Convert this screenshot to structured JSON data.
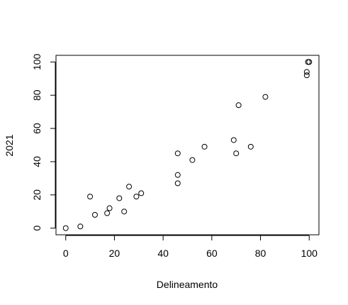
{
  "chart_data": {
    "type": "scatter",
    "title": "",
    "xlabel": "Delineamento",
    "ylabel": "2021",
    "xlim": [
      -4,
      104
    ],
    "ylim": [
      -4,
      104
    ],
    "x_ticks": [
      0,
      20,
      40,
      60,
      80,
      100
    ],
    "y_ticks": [
      0,
      20,
      40,
      60,
      80,
      100
    ],
    "x_tick_labels": [
      "0",
      "20",
      "40",
      "60",
      "80",
      "100"
    ],
    "y_tick_labels": [
      "0",
      "20",
      "40",
      "60",
      "80",
      "100"
    ],
    "grid": false,
    "marker": "open-circle",
    "marker_color": "#000000",
    "series": [
      {
        "points": [
          [
            0,
            0
          ],
          [
            6,
            1
          ],
          [
            10,
            19
          ],
          [
            12,
            8
          ],
          [
            17,
            9
          ],
          [
            18,
            12
          ],
          [
            22,
            18
          ],
          [
            24,
            10
          ],
          [
            26,
            25
          ],
          [
            29,
            19
          ],
          [
            31,
            21
          ],
          [
            46,
            27
          ],
          [
            46,
            32
          ],
          [
            46,
            45
          ],
          [
            52,
            41
          ],
          [
            57,
            49
          ],
          [
            69,
            53
          ],
          [
            70,
            45
          ],
          [
            71,
            74
          ],
          [
            76,
            49
          ],
          [
            82,
            79
          ],
          [
            99,
            92
          ],
          [
            99,
            94
          ],
          [
            100,
            100
          ],
          [
            99.5,
            100
          ]
        ]
      }
    ]
  }
}
